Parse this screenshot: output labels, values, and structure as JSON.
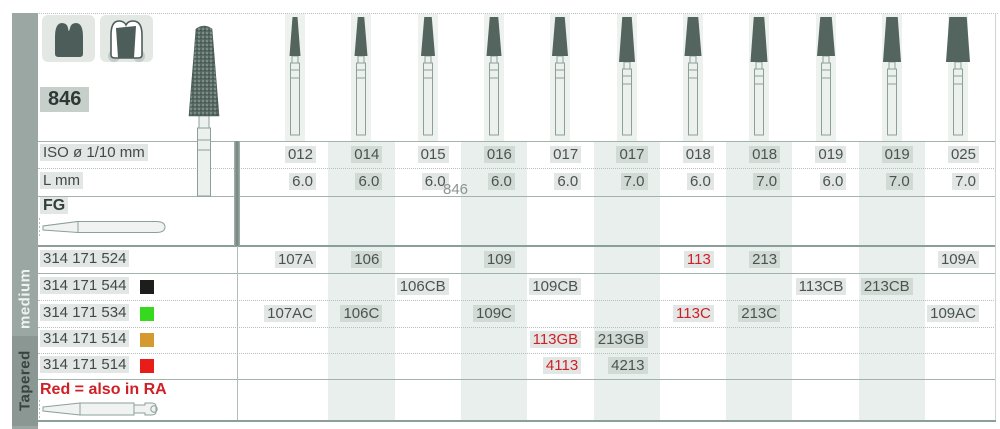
{
  "page": {
    "figure_number": "846",
    "watermark": "846",
    "footnote": "Red = also in RA",
    "side_shape": "Tapered",
    "side_grit": "medium"
  },
  "labels": {
    "iso": "ISO ø 1/10 mm",
    "l": "L mm",
    "shank": "FG"
  },
  "columns": [
    {
      "iso": "012",
      "l": "6.0"
    },
    {
      "iso": "014",
      "l": "6.0"
    },
    {
      "iso": "015",
      "l": "6.0"
    },
    {
      "iso": "016",
      "l": "6.0"
    },
    {
      "iso": "017",
      "l": "6.0"
    },
    {
      "iso": "017",
      "l": "7.0"
    },
    {
      "iso": "018",
      "l": "6.0"
    },
    {
      "iso": "018",
      "l": "7.0"
    },
    {
      "iso": "019",
      "l": "6.0"
    },
    {
      "iso": "019",
      "l": "7.0"
    },
    {
      "iso": "025",
      "l": "7.0"
    }
  ],
  "order_rows": [
    {
      "code": "314 171 524",
      "chip_color": null,
      "values": [
        "107A",
        "106",
        "",
        "109",
        "",
        "",
        "113",
        "213",
        "",
        "",
        "109A"
      ],
      "red_indices": [
        6
      ]
    },
    {
      "code": "314 171 544",
      "chip_color": "#1d1d1b",
      "values": [
        "",
        "",
        "106CB",
        "",
        "109CB",
        "",
        "",
        "",
        "113CB",
        "213CB",
        ""
      ],
      "red_indices": []
    },
    {
      "code": "314 171 534",
      "chip_color": "#35da1f",
      "values": [
        "107AC",
        "106C",
        "",
        "109C",
        "",
        "",
        "113C",
        "213C",
        "",
        "",
        "109AC"
      ],
      "red_indices": [
        6
      ]
    },
    {
      "code": "314 171 514",
      "chip_color": "#d49a31",
      "values": [
        "",
        "",
        "",
        "",
        "113GB",
        "213GB",
        "",
        "",
        "",
        "",
        ""
      ],
      "red_indices": [
        4
      ]
    },
    {
      "code": "314 171 514",
      "chip_color": "#e81c19",
      "values": [
        "",
        "",
        "",
        "",
        "4113",
        "4213",
        "",
        "",
        "",
        "",
        ""
      ],
      "red_indices": [
        4
      ]
    }
  ],
  "colors": {
    "red_text": "#cf2026",
    "column_band": "#e9efec",
    "sidebar": "#9aa7a3"
  },
  "icons": {
    "crown_icon": "dark molar crown silhouette",
    "prepared_tooth_icon": "tooth outline with dark crown preparation",
    "fg_shank_icon": "friction grip shank outline",
    "ra_shank_icon": "right angle latch shank outline",
    "bur_photo": "diamond coated flat-end taper bur",
    "bur_illustration": "flat-end taper bur pictogram"
  }
}
